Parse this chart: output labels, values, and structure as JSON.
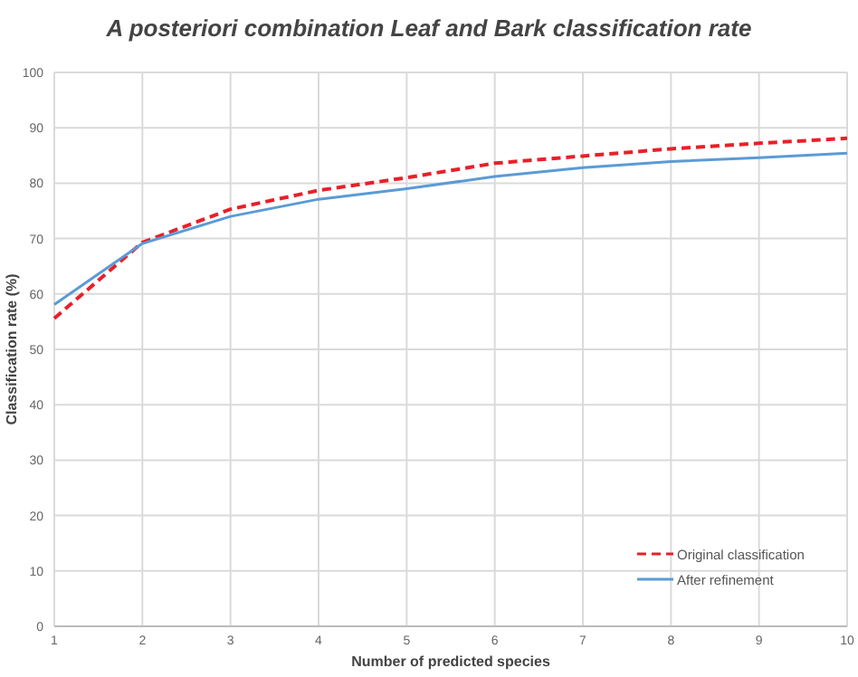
{
  "chart_data": {
    "type": "line",
    "title": "A posteriori combination Leaf and Bark classification rate",
    "xlabel": "Number of predicted species",
    "ylabel": "Classification rate (%)",
    "x": [
      1,
      2,
      3,
      4,
      5,
      6,
      7,
      8,
      9,
      10
    ],
    "xlim": [
      1,
      10
    ],
    "xticks": [
      1,
      2,
      3,
      4,
      5,
      6,
      7,
      8,
      9,
      10
    ],
    "ylim": [
      0,
      100
    ],
    "yticks": [
      0,
      10,
      20,
      30,
      40,
      50,
      60,
      70,
      80,
      90,
      100
    ],
    "grid": true,
    "legend": "bottom right",
    "series": [
      {
        "name": "Original classification",
        "color": "#e8202a",
        "line_style": "dashed",
        "values": [
          55.6,
          69.3,
          75.3,
          78.7,
          81.0,
          83.6,
          84.9,
          86.2,
          87.2,
          88.1
        ]
      },
      {
        "name": "After refinement",
        "color": "#5b9bd5",
        "line_style": "solid",
        "values": [
          58.1,
          69.1,
          74.0,
          77.1,
          79.0,
          81.2,
          82.8,
          83.9,
          84.6,
          85.4
        ]
      }
    ]
  }
}
